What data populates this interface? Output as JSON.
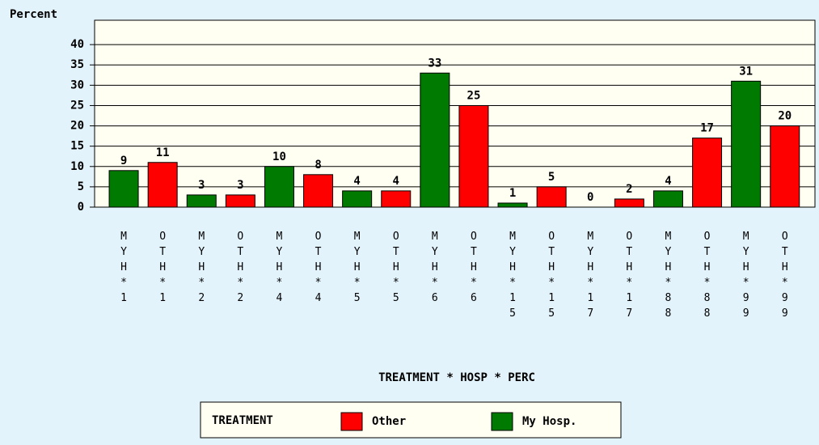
{
  "chart_data": {
    "type": "bar",
    "y_label": "Percent",
    "x_label": "TREATMENT * HOSP * PERC",
    "legend_title": "TREATMENT",
    "categories": [
      "MYH*1",
      "OTH*1",
      "MYH*2",
      "OTH*2",
      "MYH*4",
      "OTH*4",
      "MYH*5",
      "OTH*5",
      "MYH*6",
      "OTH*6",
      "MYH*15",
      "OTH*15",
      "MYH*17",
      "OTH*17",
      "MYH*88",
      "OTH*88",
      "MYH*99",
      "OTH*99"
    ],
    "series": [
      {
        "name": "Other",
        "color": "#ff0000",
        "values": [
          null,
          11,
          null,
          3,
          null,
          8,
          null,
          4,
          null,
          25,
          null,
          5,
          null,
          2,
          null,
          17,
          null,
          20
        ]
      },
      {
        "name": "My Hosp.",
        "color": "#007a00",
        "values": [
          9,
          null,
          3,
          null,
          10,
          null,
          4,
          null,
          33,
          null,
          1,
          null,
          0,
          null,
          4,
          null,
          31,
          null
        ]
      }
    ],
    "ylim": [
      0,
      46
    ],
    "yticks": [
      0,
      5,
      10,
      15,
      20,
      25,
      30,
      35,
      40
    ],
    "grid": true,
    "legend": "bottom"
  }
}
